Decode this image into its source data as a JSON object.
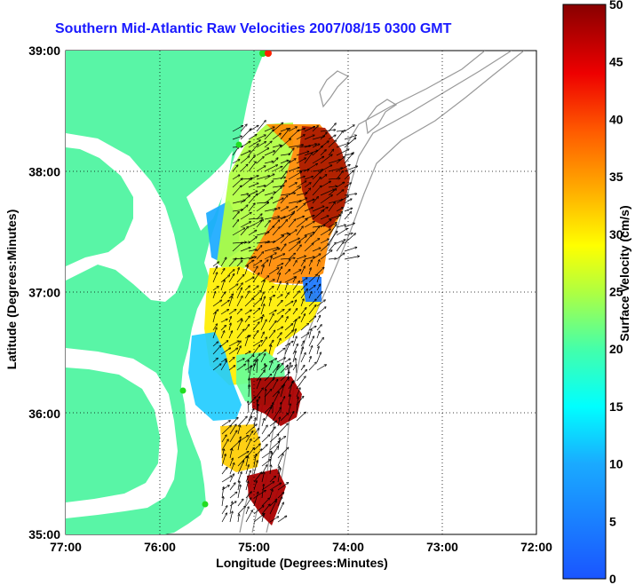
{
  "title": "Southern Mid-Atlantic Raw Velocities 2007/08/15 0300 GMT",
  "axes": {
    "xlabel": "Longitude (Degrees:Minutes)",
    "ylabel": "Latitude (Degrees:Minutes)",
    "x_ticks": [
      "77:00",
      "76:00",
      "75:00",
      "74:00",
      "73:00",
      "72:00"
    ],
    "y_ticks": [
      "39:00",
      "38:00",
      "37:00",
      "36:00",
      "35:00"
    ]
  },
  "colorbar": {
    "label": "Surface Velocity (cm/s)",
    "ticks": [
      "50",
      "45",
      "40",
      "35",
      "30",
      "25",
      "20",
      "15",
      "10",
      "5",
      "0"
    ],
    "min": 0,
    "max": 50
  },
  "map_extent": {
    "lon": [
      -77,
      -72
    ],
    "lat": [
      35,
      39
    ]
  },
  "colors": {
    "land": "#59f5a6",
    "title": "#1a1aff",
    "bathymetry": "#999999",
    "station_marker": "#22dd22",
    "station_marker_red": "#ff2200"
  }
}
